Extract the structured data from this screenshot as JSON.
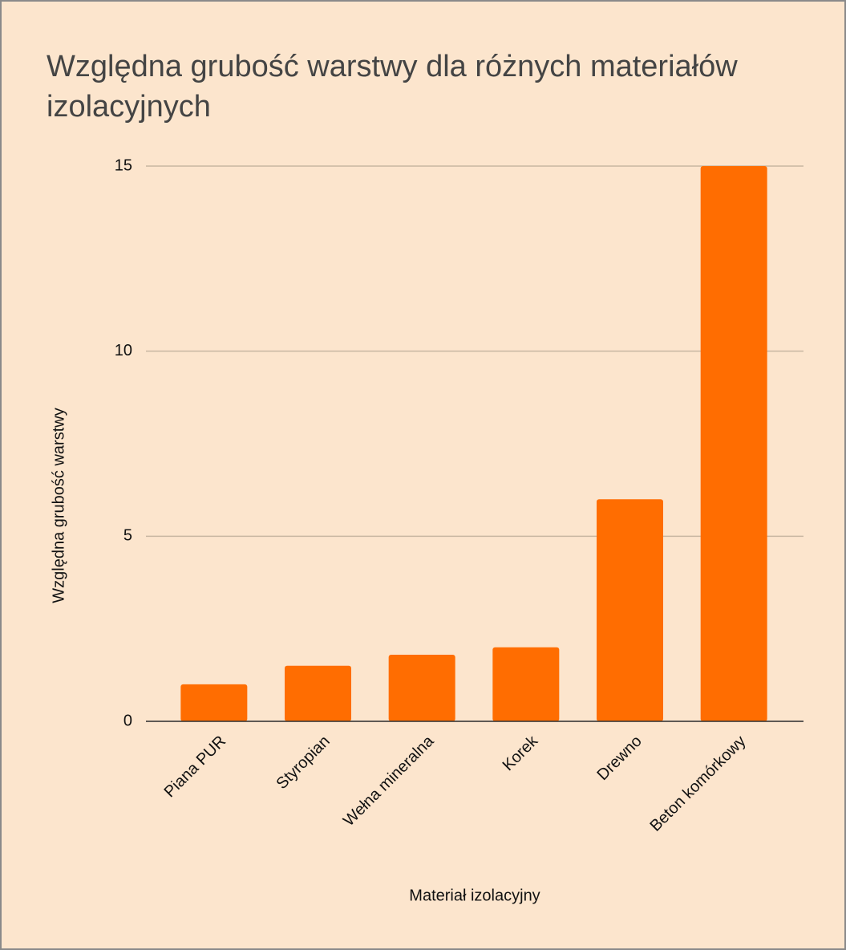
{
  "chart_data": {
    "type": "bar",
    "title": "Względna grubość warstwy dla różnych materiałów izolacyjnych",
    "x_label": "Materiał izolacyjny",
    "y_label": "Względna grubość warstwy",
    "categories": [
      "Piana PUR",
      "Styropian",
      "Wełna mineralna",
      "Korek",
      "Drewno",
      "Beton komórkowy"
    ],
    "values": [
      1,
      1.5,
      1.8,
      2,
      6,
      15
    ],
    "color": "#ff6d01",
    "ylim": [
      0,
      15
    ],
    "yticks": [
      0,
      5,
      10,
      15
    ],
    "grid": true
  }
}
